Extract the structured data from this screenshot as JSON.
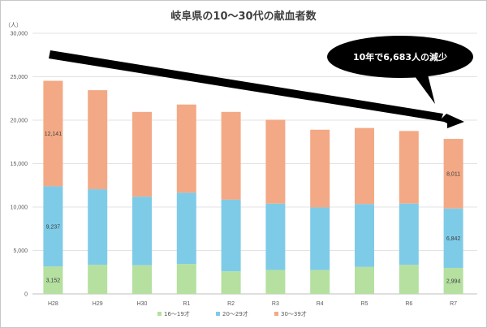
{
  "chart_data": {
    "type": "bar",
    "stacked": true,
    "title": "岐阜県の10～30代の献血者数",
    "ylabel": "（人）",
    "xlabel": "",
    "categories": [
      "H28",
      "H29",
      "H30",
      "R1",
      "R2",
      "R3",
      "R4",
      "R5",
      "R6",
      "R7"
    ],
    "series": [
      {
        "name": "16～19才",
        "color": "#b5e0a0",
        "values": [
          3152,
          3350,
          3300,
          3450,
          2600,
          2750,
          2750,
          3100,
          3350,
          2994
        ]
      },
      {
        "name": "20～29才",
        "color": "#7ecbe8",
        "values": [
          9237,
          8700,
          7900,
          8200,
          8250,
          7650,
          7200,
          7250,
          7050,
          6842
        ]
      },
      {
        "name": "30～39才",
        "color": "#f3a985",
        "values": [
          12141,
          11400,
          9750,
          10150,
          10100,
          9650,
          8950,
          8750,
          8350,
          8011
        ]
      }
    ],
    "ylim": [
      0,
      30000
    ],
    "yticks": [
      "0",
      "5,000",
      "10,000",
      "15,000",
      "20,000",
      "25,000",
      "30,000"
    ],
    "ytick_values": [
      0,
      5000,
      10000,
      15000,
      20000,
      25000,
      30000
    ],
    "grid": true,
    "legend_position": "bottom",
    "data_labels": [
      {
        "category_index": 0,
        "series_index": 0,
        "text": "3,152"
      },
      {
        "category_index": 0,
        "series_index": 1,
        "text": "9,237"
      },
      {
        "category_index": 0,
        "series_index": 2,
        "text": "12,141"
      },
      {
        "category_index": 9,
        "series_index": 0,
        "text": "2,994"
      },
      {
        "category_index": 9,
        "series_index": 1,
        "text": "6,842"
      },
      {
        "category_index": 9,
        "series_index": 2,
        "text": "8,011"
      }
    ],
    "annotation": {
      "text": "10年で6,683人の減少",
      "arrow": "decreasing trend from H28 to R7",
      "bubble_color": "#000000"
    }
  }
}
